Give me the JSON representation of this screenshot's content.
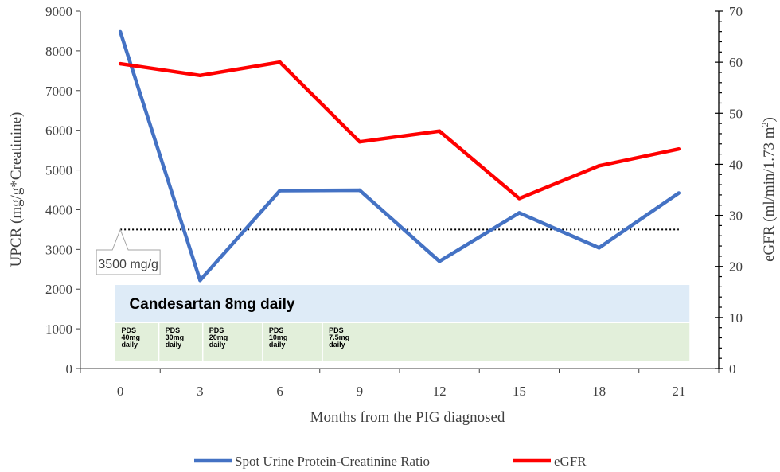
{
  "chart_data": {
    "type": "line",
    "x": [
      0,
      3,
      6,
      9,
      12,
      15,
      18,
      21
    ],
    "xlabel": "Months from the PIG diagnosed",
    "xlim": [
      -1.5,
      22.5
    ],
    "ylabel_left": "UPCR (mg/g*Creatinine)",
    "ylim_left": [
      0,
      9000
    ],
    "yticks_left": [
      0,
      1000,
      2000,
      3000,
      4000,
      5000,
      6000,
      7000,
      8000,
      9000
    ],
    "ylabel_right_main": "eGFR (ml/min/1.73 m",
    "ylabel_right_sup": "2",
    "ylabel_right_end": ")",
    "ylim_right": [
      0,
      70
    ],
    "yticks_right": [
      0,
      10,
      20,
      30,
      40,
      50,
      60,
      70
    ],
    "series": [
      {
        "name": "Spot Urine Protein-Creatinine Ratio",
        "axis": "left",
        "color": "#4472C4",
        "values": [
          8480,
          2220,
          4480,
          4490,
          2700,
          3920,
          3040,
          4420
        ]
      },
      {
        "name": "eGFR",
        "axis": "right",
        "color": "#FF0000",
        "values": [
          59.7,
          57.4,
          60.0,
          44.4,
          46.5,
          33.3,
          39.7,
          43.0
        ]
      }
    ],
    "reference_line": {
      "value": 3500,
      "axis": "left",
      "label": "3500 mg/g",
      "from_x": 0,
      "to_x": 21
    },
    "treatment_bars": {
      "candesartan": {
        "label": "Candesartan 8mg daily",
        "from_x": -0.2,
        "to_x": 21.4,
        "color": "#DEEBF7"
      },
      "pds": [
        {
          "lines": [
            "PDS",
            "40mg",
            "daily"
          ],
          "from_x": -0.2,
          "to_x": 1.45
        },
        {
          "lines": [
            "PDS",
            "30mg",
            "daily"
          ],
          "from_x": 1.45,
          "to_x": 3.1
        },
        {
          "lines": [
            "PDS",
            "20mg",
            "daily"
          ],
          "from_x": 3.1,
          "to_x": 5.35
        },
        {
          "lines": [
            "PDS",
            "10mg",
            "daily"
          ],
          "from_x": 5.35,
          "to_x": 7.6
        },
        {
          "lines": [
            "PDS",
            "7.5mg",
            "daily"
          ],
          "from_x": 7.6,
          "to_x": 21.4
        }
      ],
      "pds_color": "#E2EFDA"
    },
    "legend": {
      "position": "bottom"
    }
  }
}
